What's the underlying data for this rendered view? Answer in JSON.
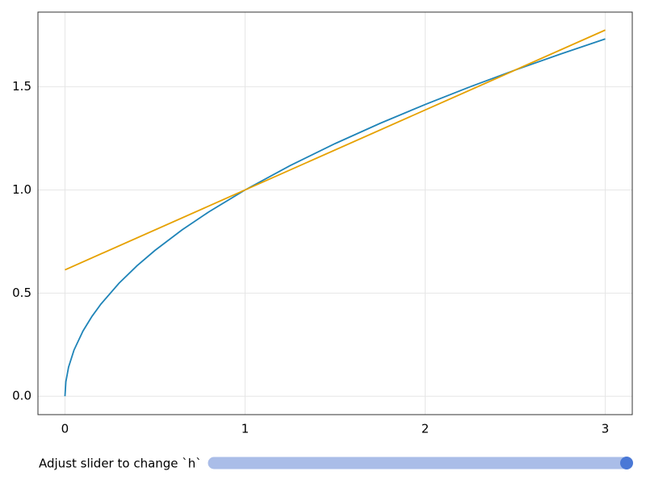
{
  "chart_data": {
    "type": "line",
    "series": [
      {
        "color": "#1f84b8",
        "x": [
          0,
          0.005,
          0.02,
          0.05,
          0.1,
          0.15,
          0.2,
          0.3,
          0.4,
          0.5,
          0.65,
          0.8,
          1,
          1.25,
          1.5,
          1.75,
          2,
          2.25,
          2.5,
          2.75,
          3
        ],
        "values": [
          0,
          0.0707,
          0.1414,
          0.2236,
          0.3162,
          0.3873,
          0.4472,
          0.5477,
          0.6325,
          0.7071,
          0.8062,
          0.8944,
          1,
          1.118,
          1.2247,
          1.3229,
          1.4142,
          1.5,
          1.5811,
          1.6583,
          1.7321
        ]
      },
      {
        "color": "#e6a100",
        "x": [
          0,
          3
        ],
        "values": [
          0.6126,
          1.775
        ]
      }
    ],
    "xlim": [
      -0.15,
      3.15
    ],
    "xticks": [
      0,
      1,
      2,
      3
    ],
    "ylim": [
      -0.089,
      1.862
    ],
    "yticks": [
      {
        "value": 0,
        "label": "0.0"
      },
      {
        "value": 0.5,
        "label": "0.5"
      },
      {
        "value": 1,
        "label": "1.0"
      },
      {
        "value": 1.5,
        "label": "1.5"
      }
    ],
    "grid": true
  },
  "slider_label": "Adjust slider to change `h`"
}
